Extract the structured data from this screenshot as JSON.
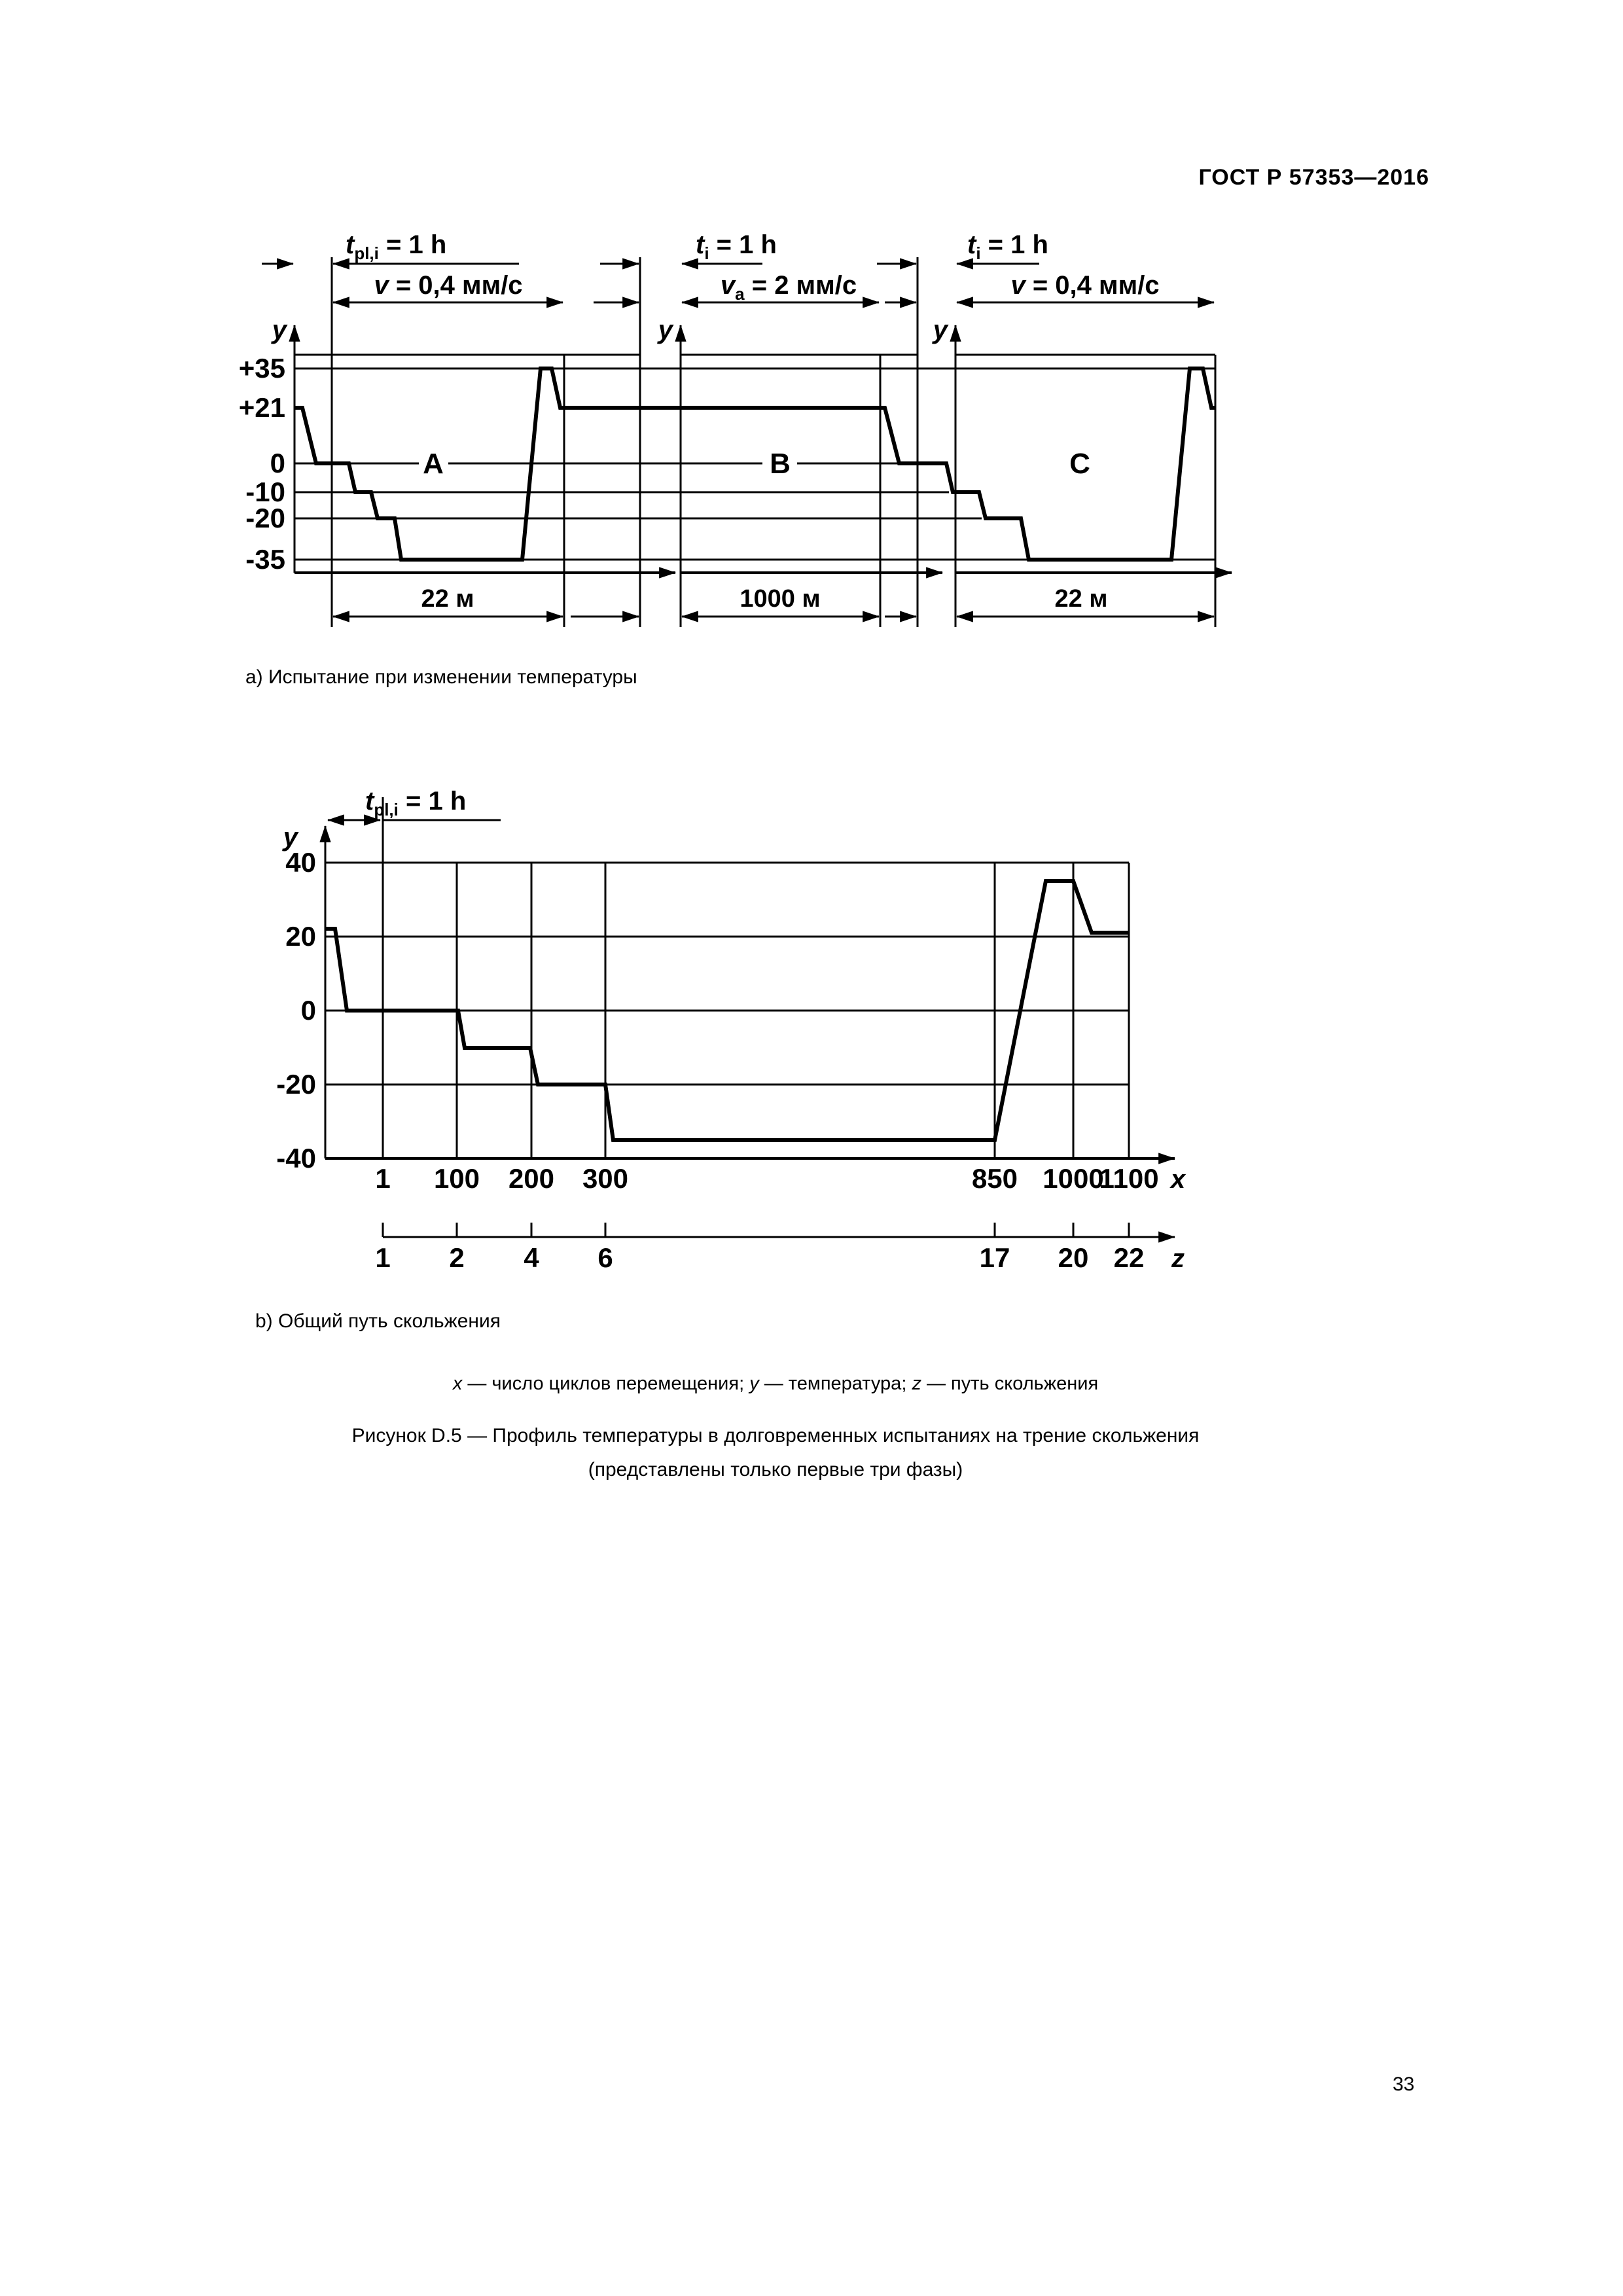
{
  "page": {
    "header": "ГОСТ Р 57353—2016",
    "number": "33"
  },
  "diagram_a": {
    "caption": "а) Испытание при изменении температуры",
    "y_axis_name": "y",
    "y_ticks": [
      "+35",
      "+21",
      "0",
      "-10",
      "-20",
      "-35"
    ],
    "phases": [
      {
        "label": "A",
        "hold": {
          "pre": "t",
          "sub": "pl,i",
          "post": " = 1 h"
        },
        "speed": {
          "pre": "v",
          "post": " = 0,4 мм/с"
        },
        "distance": "22 м"
      },
      {
        "label": "B",
        "hold": {
          "pre": "t",
          "sub": "i",
          "post": " = 1 h"
        },
        "speed": {
          "pre": "v",
          "sub": "a",
          "post": " = 2 мм/с"
        },
        "distance": "1000 м"
      },
      {
        "label": "C",
        "hold": {
          "pre": "t",
          "sub": "i",
          "post": " = 1 h"
        },
        "speed": {
          "pre": "v",
          "post": " = 0,4 мм/с"
        },
        "distance": "22 м"
      }
    ]
  },
  "diagram_b": {
    "caption": "b) Общий путь скольжения",
    "y_axis_name": "y",
    "x_axis_name": "x",
    "z_axis_name": "z",
    "hold": {
      "pre": "t",
      "sub": "pl,i",
      "post": " = 1 h"
    },
    "y_ticks": [
      "40",
      "20",
      "0",
      "-20",
      "-40"
    ],
    "x_ticks": [
      "1",
      "100",
      "200",
      "300",
      "850",
      "1000",
      "1100"
    ],
    "z_ticks": [
      "1",
      "2",
      "4",
      "6",
      "17",
      "20",
      "22"
    ]
  },
  "legend_parts": [
    {
      "text": "x",
      "italic": true
    },
    {
      "text": " — число циклов перемещения; ",
      "italic": false
    },
    {
      "text": "y",
      "italic": true
    },
    {
      "text": " — температура; ",
      "italic": false
    },
    {
      "text": "z",
      "italic": true
    },
    {
      "text": " — путь скольжения",
      "italic": false
    }
  ],
  "figure_caption": [
    "Рисунок D.5 — Профиль температуры в долговременных испытаниях на трение скольжения",
    "(представлены только первые три фазы)"
  ],
  "chart_data": [
    {
      "id": "a",
      "type": "line",
      "title": "а) Испытание при изменении температуры",
      "ylabel": "y — температура, °C",
      "y_ticks": [
        35,
        21,
        0,
        -10,
        -20,
        -35
      ],
      "grid": true,
      "phases": [
        {
          "label": "A",
          "hold_h": 1,
          "speed_mm_s": 0.4,
          "distance_m": 22,
          "temperature_steps": [
            21,
            0,
            -10,
            -20,
            -35,
            35,
            21
          ]
        },
        {
          "label": "B",
          "hold_h": 1,
          "speed_mm_s": 2.0,
          "distance_m": 1000,
          "temperature_steps": [
            21
          ]
        },
        {
          "label": "C",
          "hold_h": 1,
          "speed_mm_s": 0.4,
          "distance_m": 22,
          "temperature_steps": [
            21,
            0,
            -10,
            -20,
            -35,
            35,
            21
          ]
        }
      ]
    },
    {
      "id": "b",
      "type": "line",
      "title": "b) Общий путь скольжения",
      "xlabel": "x — число циклов перемещения",
      "ylabel": "y — температура",
      "zlabel": "z — путь скольжения",
      "x_ticks": [
        1,
        100,
        200,
        300,
        850,
        1000,
        1100
      ],
      "z_ticks_at_same_x": [
        1,
        2,
        4,
        6,
        17,
        20,
        22
      ],
      "y_ticks": [
        40,
        20,
        0,
        -20,
        -40
      ],
      "ylim": [
        -40,
        40
      ],
      "points_x_y": [
        [
          0,
          21
        ],
        [
          1,
          0
        ],
        [
          100,
          0
        ],
        [
          105,
          -10
        ],
        [
          200,
          -10
        ],
        [
          205,
          -20
        ],
        [
          300,
          -20
        ],
        [
          305,
          -35
        ],
        [
          850,
          -35
        ],
        [
          910,
          35
        ],
        [
          1000,
          35
        ],
        [
          1020,
          21
        ],
        [
          1100,
          21
        ]
      ]
    }
  ]
}
